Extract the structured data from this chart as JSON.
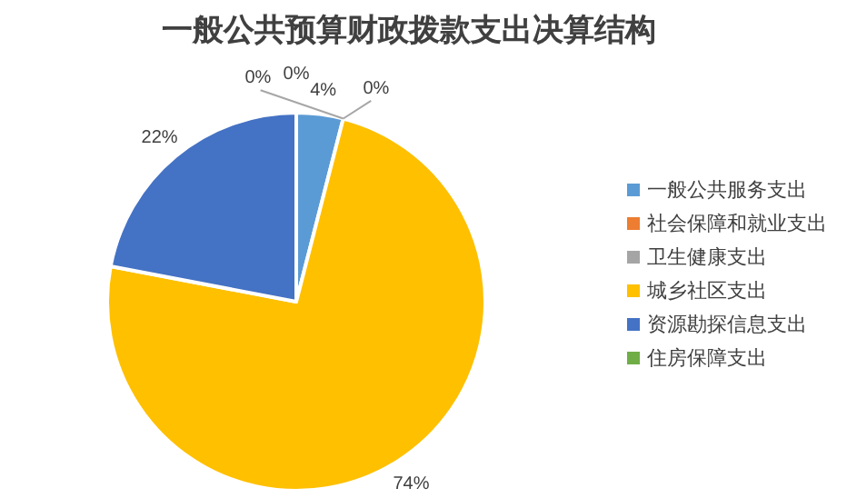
{
  "chart_data": {
    "type": "pie",
    "title": "一般公共预算财政拨款支出决算结构",
    "categories": [
      "一般公共服务支出",
      "社会保障和就业支出",
      "卫生健康支出",
      "城乡社区支出",
      "资源勘探信息支出",
      "住房保障支出"
    ],
    "values": [
      4,
      0,
      0,
      74,
      22,
      0
    ],
    "colors": [
      "#5b9bd5",
      "#ed7d31",
      "#a5a5a5",
      "#ffc000",
      "#4472c4",
      "#70ad47"
    ],
    "value_labels": [
      "4%",
      "0%",
      "0%",
      "74%",
      "22%",
      "0%"
    ],
    "legend": "right"
  }
}
